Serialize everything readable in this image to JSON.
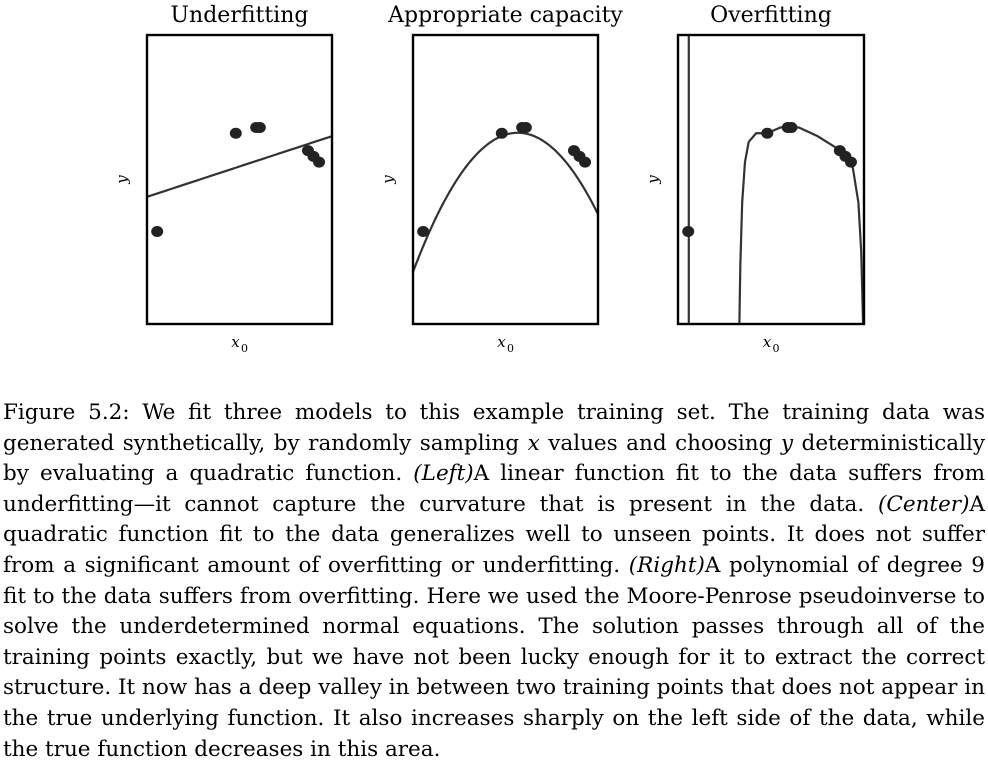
{
  "chart_data": [
    {
      "type": "line",
      "title": "Underfitting",
      "xlabel": "x",
      "xlabel_sub": "0",
      "ylabel": "y",
      "xlim": [
        0,
        1
      ],
      "ylim": [
        0,
        1
      ],
      "points": [
        {
          "x": 0.055,
          "y": 0.32
        },
        {
          "x": 0.48,
          "y": 0.66
        },
        {
          "x": 0.59,
          "y": 0.68
        },
        {
          "x": 0.61,
          "y": 0.68
        },
        {
          "x": 0.87,
          "y": 0.6
        },
        {
          "x": 0.9,
          "y": 0.58
        },
        {
          "x": 0.93,
          "y": 0.56
        }
      ],
      "fit": {
        "kind": "linear",
        "coeffs": [
          0.44,
          0.21
        ]
      }
    },
    {
      "type": "line",
      "title": "Appropriate capacity",
      "xlabel": "x",
      "xlabel_sub": "0",
      "ylabel": "y",
      "xlim": [
        0,
        1
      ],
      "ylim": [
        0,
        1
      ],
      "points": [
        {
          "x": 0.055,
          "y": 0.32
        },
        {
          "x": 0.48,
          "y": 0.66
        },
        {
          "x": 0.59,
          "y": 0.68
        },
        {
          "x": 0.61,
          "y": 0.68
        },
        {
          "x": 0.87,
          "y": 0.6
        },
        {
          "x": 0.9,
          "y": 0.58
        },
        {
          "x": 0.93,
          "y": 0.56
        }
      ],
      "fit": {
        "kind": "quadratic",
        "coeffs": [
          0.18,
          1.7,
          -1.5
        ]
      }
    },
    {
      "type": "line",
      "title": "Overfitting",
      "xlabel": "x",
      "xlabel_sub": "0",
      "ylabel": "y",
      "xlim": [
        0,
        1
      ],
      "ylim": [
        0,
        1
      ],
      "points": [
        {
          "x": 0.055,
          "y": 0.32
        },
        {
          "x": 0.48,
          "y": 0.66
        },
        {
          "x": 0.59,
          "y": 0.68
        },
        {
          "x": 0.61,
          "y": 0.68
        },
        {
          "x": 0.87,
          "y": 0.6
        },
        {
          "x": 0.9,
          "y": 0.58
        },
        {
          "x": 0.93,
          "y": 0.56
        }
      ],
      "fit": {
        "kind": "polyline",
        "segments": [
          [
            {
              "x": 0.058,
              "y": 1
            },
            {
              "x": 0.058,
              "y": 0
            }
          ],
          [
            {
              "x": 0.33,
              "y": 0
            },
            {
              "x": 0.335,
              "y": 0.2
            },
            {
              "x": 0.345,
              "y": 0.42
            },
            {
              "x": 0.36,
              "y": 0.56
            },
            {
              "x": 0.38,
              "y": 0.63
            },
            {
              "x": 0.42,
              "y": 0.66
            },
            {
              "x": 0.48,
              "y": 0.66
            },
            {
              "x": 0.55,
              "y": 0.68
            },
            {
              "x": 0.65,
              "y": 0.68
            },
            {
              "x": 0.75,
              "y": 0.65
            },
            {
              "x": 0.85,
              "y": 0.61
            },
            {
              "x": 0.9,
              "y": 0.58
            },
            {
              "x": 0.94,
              "y": 0.54
            },
            {
              "x": 0.97,
              "y": 0.42
            },
            {
              "x": 0.985,
              "y": 0.25
            },
            {
              "x": 0.995,
              "y": 0
            }
          ]
        ]
      }
    }
  ],
  "caption": {
    "p1": "Figure 5.2: We fit three models to this example training set. The training data was generated synthetically, by randomly sampling ",
    "x_var": "x",
    "p2": " values and choosing ",
    "y_var": "y",
    "p3": " deterministically by evaluating a quadratic function. ",
    "left_label": "(Left)",
    "p4": "A linear function fit to the data suffers from underfitting—it cannot capture the curvature that is present in the data. ",
    "center_label": "(Center)",
    "p5": "A quadratic function fit to the data generalizes well to unseen points. It does not suffer from a significant amount of overfitting or underfitting. ",
    "right_label": "(Right)",
    "p6": "A polynomial of degree 9 fit to the data suffers from overfitting. Here we used the Moore-Penrose pseudoinverse to solve the underdetermined normal equations. The solution passes through all of the training points exactly, but we have not been lucky enough for it to extract the correct structure. It now has a deep valley in between two training points that does not appear in the true underlying function. It also increases sharply on the left side of the data, while the true function decreases in this area."
  }
}
